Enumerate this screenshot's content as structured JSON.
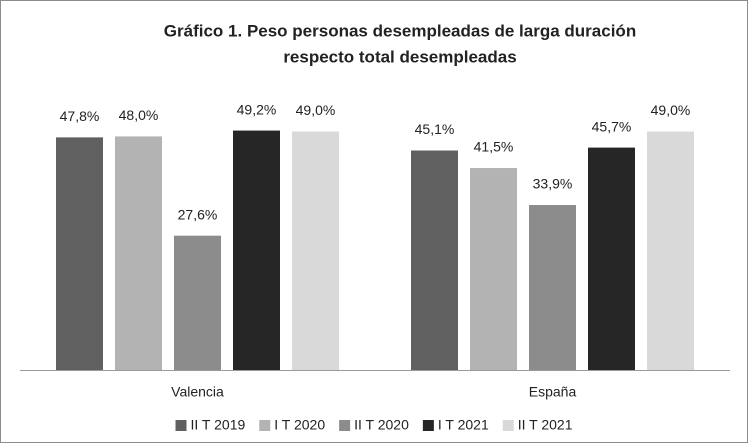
{
  "chart_data": {
    "type": "bar",
    "title": [
      "Gráfico 1. Peso personas desempleadas de larga duración",
      "respecto total desempleadas"
    ],
    "categories": [
      "Valencia",
      "España"
    ],
    "series": [
      {
        "name": "II T 2019",
        "color": "#606060",
        "values": [
          47.8,
          45.1
        ],
        "value_labels": [
          "47,8%",
          "45,1%"
        ]
      },
      {
        "name": "I T 2020",
        "color": "#b3b3b3",
        "values": [
          48.0,
          41.5
        ],
        "value_labels": [
          "48,0%",
          "41,5%"
        ]
      },
      {
        "name": "II T 2020",
        "color": "#8c8c8c",
        "values": [
          27.6,
          33.9
        ],
        "value_labels": [
          "27,6%",
          "33,9%"
        ]
      },
      {
        "name": "I T 2021",
        "color": "#262626",
        "values": [
          49.2,
          45.7
        ],
        "value_labels": [
          "49,2%",
          "45,7%"
        ]
      },
      {
        "name": "II T 2021",
        "color": "#d9d9d9",
        "values": [
          49.0,
          49.0
        ],
        "value_labels": [
          "49,0%",
          "49,0%"
        ]
      }
    ],
    "ylim": [
      0,
      60
    ],
    "legend": "bottom"
  }
}
